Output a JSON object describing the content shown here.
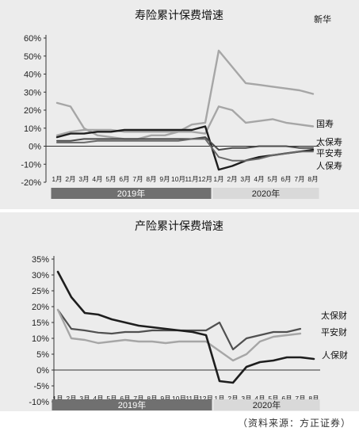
{
  "source_note": "（资料来源：方正证券）",
  "chart_data": [
    {
      "type": "line",
      "title": "寿险累计保费增速",
      "ylim": [
        -20,
        60
      ],
      "y_ticks": [
        "60%",
        "50%",
        "40%",
        "30%",
        "20%",
        "10%",
        "0%",
        "-10%",
        "-20%"
      ],
      "categories": [
        "1月",
        "2月",
        "3月",
        "4月",
        "5月",
        "6月",
        "7月",
        "8月",
        "9月",
        "10月",
        "11月",
        "12月",
        "1月",
        "2月",
        "3月",
        "4月",
        "5月",
        "6月",
        "7月",
        "8月"
      ],
      "x_groups": [
        {
          "label": "2019年",
          "count": 12,
          "color": "#707070",
          "text_color": "#ffffff"
        },
        {
          "label": "2020年",
          "count": 8,
          "color": "#d9d9d9",
          "text_color": "#222222"
        }
      ],
      "grid": false,
      "series": [
        {
          "name": "新华",
          "color": "#a6a6a6",
          "width": 2.4,
          "values": [
            24,
            22,
            10,
            6,
            5,
            4,
            4,
            6,
            6,
            8,
            12,
            13,
            53,
            44,
            35,
            34,
            33,
            32,
            31,
            29
          ]
        },
        {
          "name": "国寿",
          "color": "#a6a6a6",
          "width": 2.4,
          "values": [
            6,
            8,
            9,
            9,
            9,
            8,
            8,
            8,
            8,
            8,
            8,
            7,
            22,
            20,
            13,
            14,
            15,
            13,
            12,
            11
          ]
        },
        {
          "name": "太保寿",
          "color": "#1e1e1e",
          "width": 2.4,
          "values": [
            5,
            7,
            7,
            8,
            8,
            9,
            9,
            9,
            9,
            9,
            9,
            11,
            -13,
            -11,
            -8,
            -6,
            -5,
            -4,
            -3,
            -2
          ]
        },
        {
          "name": "平安寿",
          "color": "#4a4a4a",
          "width": 2.0,
          "values": [
            3,
            3,
            4,
            4,
            4,
            4,
            4,
            4,
            4,
            4,
            4,
            5,
            -2,
            -1,
            -1,
            0,
            0,
            0,
            -1,
            -1
          ]
        },
        {
          "name": "人保寿",
          "color": "#6a6a6a",
          "width": 2.0,
          "values": [
            2,
            2,
            2,
            3,
            3,
            3,
            3,
            3,
            3,
            3,
            4,
            4,
            -6,
            -8,
            -8,
            -7,
            -5,
            -4,
            -3,
            -3
          ]
        }
      ]
    },
    {
      "type": "line",
      "title": "产险累计保费增速",
      "ylim": [
        -10,
        35
      ],
      "y_ticks": [
        "35%",
        "30%",
        "25%",
        "20%",
        "15%",
        "10%",
        "5%",
        "0%",
        "-5%",
        "-10%"
      ],
      "categories": [
        "1月",
        "2月",
        "3月",
        "4月",
        "5月",
        "6月",
        "7月",
        "8月",
        "9月",
        "10月",
        "11月",
        "12月",
        "1月",
        "2月",
        "3月",
        "4月",
        "5月",
        "6月",
        "7月",
        "8月"
      ],
      "x_groups": [
        {
          "label": "2019年",
          "count": 12,
          "color": "#707070",
          "text_color": "#ffffff"
        },
        {
          "label": "2020年",
          "count": 8,
          "color": "#d9d9d9",
          "text_color": "#222222"
        }
      ],
      "grid": false,
      "series": [
        {
          "name": "太保财",
          "color": "#505050",
          "width": 2.2,
          "values": [
            19,
            13,
            12.5,
            11.8,
            11.5,
            12,
            12,
            12.5,
            12.5,
            12.5,
            12.5,
            12.5,
            15,
            6.5,
            10,
            11,
            12,
            12,
            13,
            null
          ]
        },
        {
          "name": "平安财",
          "color": "#a6a6a6",
          "width": 2.4,
          "values": [
            19,
            10,
            9.5,
            8.5,
            9,
            9.5,
            9,
            9,
            8.5,
            9,
            9,
            9,
            6,
            3,
            5,
            9,
            10.5,
            11,
            11.5,
            null
          ]
        },
        {
          "name": "人保财",
          "color": "#1e1e1e",
          "width": 2.6,
          "values": [
            31,
            23,
            18,
            17.5,
            16,
            15,
            14,
            13.5,
            13,
            12.5,
            12,
            11,
            -3.5,
            -4,
            1,
            2.5,
            3,
            4,
            4,
            3.5
          ]
        }
      ]
    }
  ]
}
